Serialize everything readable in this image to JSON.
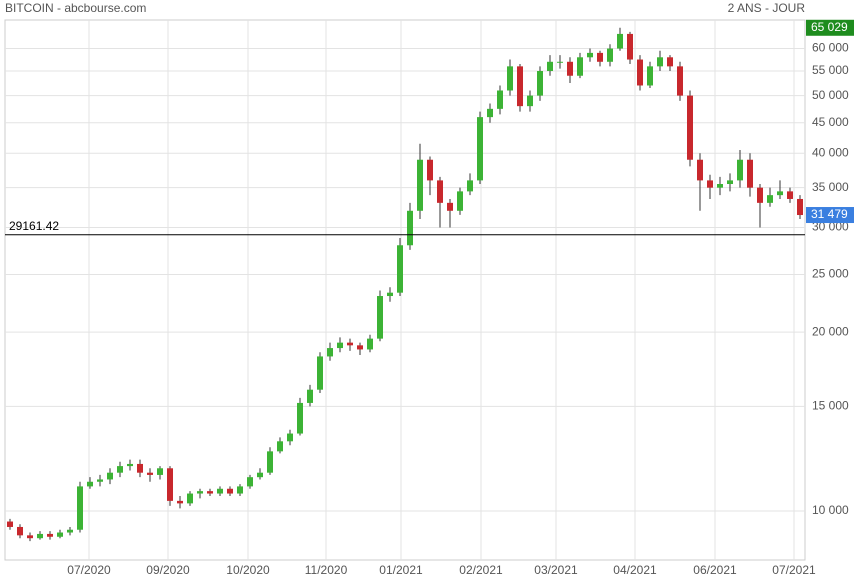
{
  "chart_data": {
    "type": "candlestick",
    "title": "BITCOIN - abcbourse.com",
    "subtitle": "2 ANS - JOUR",
    "log_scale": true,
    "grid": true,
    "up_color": "#3cb335",
    "down_color": "#c8282d",
    "xlim": [
      -0.5,
      79.5
    ],
    "xticks": [
      {
        "value": 7.9,
        "label": "07/2020"
      },
      {
        "value": 15.8,
        "label": "09/2020"
      },
      {
        "value": 23.8,
        "label": "10/2020"
      },
      {
        "value": 31.6,
        "label": "11/2020"
      },
      {
        "value": 39.1,
        "label": "01/2021"
      },
      {
        "value": 47.1,
        "label": "02/2021"
      },
      {
        "value": 54.6,
        "label": "03/2021"
      },
      {
        "value": 62.5,
        "label": "04/2021"
      },
      {
        "value": 70.5,
        "label": "06/2021"
      },
      {
        "value": 78.4,
        "label": "07/2021"
      }
    ],
    "ylim": [
      8400,
      66500
    ],
    "yticks": [
      {
        "value": 10000,
        "label": "10 000"
      },
      {
        "value": 15000,
        "label": "15 000"
      },
      {
        "value": 20000,
        "label": "20 000"
      },
      {
        "value": 25000,
        "label": "25 000"
      },
      {
        "value": 30000,
        "label": "30 000"
      },
      {
        "value": 35000,
        "label": "35 000"
      },
      {
        "value": 40000,
        "label": "40 000"
      },
      {
        "value": 45000,
        "label": "45 000"
      },
      {
        "value": 50000,
        "label": "50 000"
      },
      {
        "value": 55000,
        "label": "55 000"
      },
      {
        "value": 60000,
        "label": "60 000"
      }
    ],
    "reference_line": 29161.42,
    "high_tag": {
      "value": 65029,
      "label": "65 029",
      "color": "#1e8c1e"
    },
    "last_tag": {
      "value": 31479,
      "label": "31 479",
      "color": "#3a7fe0"
    },
    "open": [
      9600,
      9400,
      9100,
      9000,
      9150,
      9050,
      9200,
      9300,
      11000,
      11200,
      11300,
      11600,
      11900,
      12000,
      11600,
      11500,
      11800,
      10400,
      10300,
      10700,
      10800,
      10700,
      10900,
      10700,
      11000,
      11400,
      11600,
      12600,
      13100,
      13500,
      15200,
      16000,
      18200,
      18800,
      19200,
      19000,
      18700,
      19500,
      23000,
      23300,
      28000,
      32000,
      39000,
      36000,
      33000,
      32000,
      34500,
      36000,
      46000,
      47500,
      51000,
      56000,
      48000,
      50000,
      55000,
      57000,
      57000,
      54000,
      58000,
      59000,
      57000,
      60000,
      63500,
      57500,
      52000,
      56000,
      58000,
      56000,
      50000,
      39000,
      36000,
      35000,
      35500,
      36000,
      39000,
      35000,
      33000,
      34000,
      34500,
      33500
    ],
    "high": [
      9700,
      9500,
      9200,
      9250,
      9250,
      9300,
      9400,
      11200,
      11400,
      11500,
      11800,
      12100,
      12200,
      12200,
      11800,
      11900,
      11900,
      10600,
      10800,
      10900,
      10900,
      11000,
      11000,
      11100,
      11500,
      11800,
      12800,
      13300,
      13700,
      15500,
      16300,
      18500,
      19200,
      19600,
      19500,
      19200,
      19800,
      23500,
      23800,
      28800,
      33000,
      41500,
      39500,
      36500,
      33500,
      35000,
      37000,
      47000,
      48500,
      52000,
      57500,
      56500,
      51000,
      56000,
      58500,
      58500,
      58000,
      59000,
      60000,
      59500,
      61000,
      65029,
      64000,
      58500,
      57000,
      59500,
      58500,
      57000,
      51000,
      40000,
      36800,
      36500,
      37000,
      40500,
      40000,
      35500,
      35000,
      36000,
      35000,
      34000
    ],
    "low": [
      9300,
      9000,
      8900,
      8950,
      8950,
      9000,
      9100,
      9200,
      10900,
      11000,
      11100,
      11400,
      11700,
      11400,
      11200,
      11300,
      10200,
      10100,
      10200,
      10500,
      10600,
      10600,
      10600,
      10600,
      10900,
      11300,
      11500,
      12500,
      12900,
      13400,
      15000,
      15800,
      17900,
      18500,
      18600,
      18300,
      18500,
      19300,
      22500,
      23000,
      27500,
      31000,
      34000,
      30000,
      30000,
      31500,
      34000,
      35500,
      45000,
      46500,
      50000,
      47000,
      47000,
      49000,
      54000,
      55500,
      52500,
      53500,
      57000,
      56000,
      56000,
      59500,
      56500,
      51000,
      51500,
      55000,
      55000,
      49000,
      38000,
      32000,
      33500,
      34000,
      34500,
      35000,
      33800,
      30000,
      32500,
      33500,
      33000,
      31000
    ],
    "close": [
      9400,
      9100,
      9000,
      9150,
      9050,
      9200,
      9300,
      11000,
      11200,
      11300,
      11600,
      11900,
      12000,
      11600,
      11500,
      11800,
      10400,
      10300,
      10700,
      10800,
      10700,
      10900,
      10700,
      11000,
      11400,
      11600,
      12600,
      13100,
      13500,
      15200,
      16000,
      18200,
      18800,
      19200,
      19000,
      18700,
      19500,
      23000,
      23300,
      28000,
      32000,
      39000,
      36000,
      33000,
      32000,
      34500,
      36000,
      46000,
      47500,
      51000,
      56000,
      48000,
      50000,
      55000,
      57000,
      57000,
      54000,
      58000,
      59000,
      57000,
      60000,
      63500,
      57500,
      52000,
      56000,
      58000,
      56000,
      50000,
      39000,
      36000,
      35000,
      35500,
      36000,
      39000,
      35000,
      33000,
      34000,
      34500,
      33500,
      31479
    ]
  }
}
